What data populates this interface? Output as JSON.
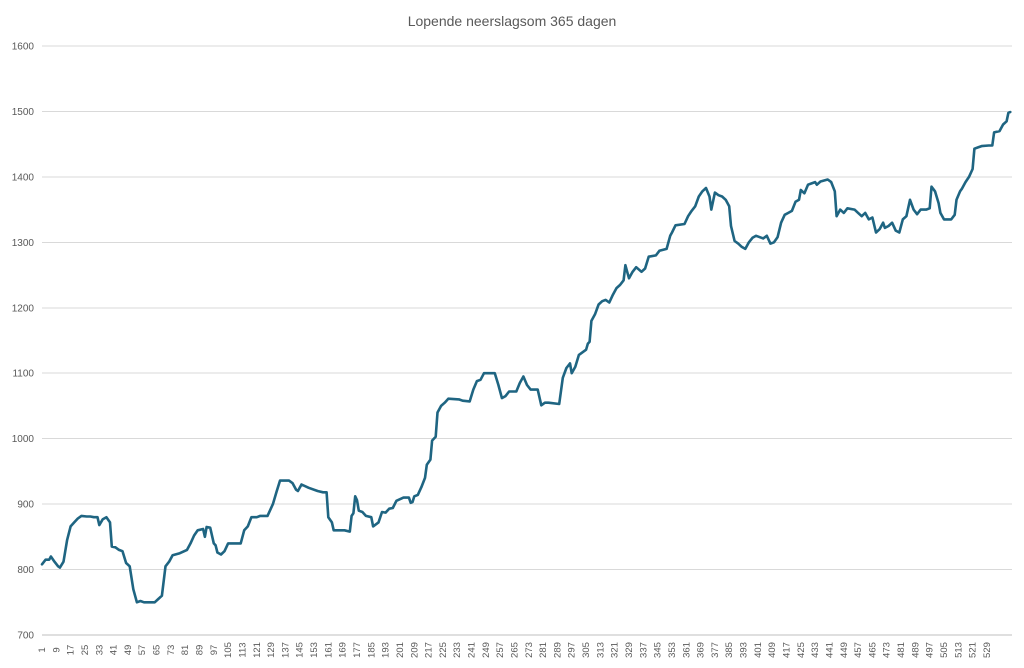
{
  "chart_data": {
    "type": "line",
    "title": "Lopende neerslagsom 365 dagen",
    "xlabel": "",
    "ylabel": "",
    "x_range": [
      1,
      536
    ],
    "x_tick_labels": [
      "1",
      "9",
      "17",
      "25",
      "33",
      "41",
      "49",
      "57",
      "65",
      "73",
      "81",
      "89",
      "97",
      "105",
      "113",
      "121",
      "129",
      "137",
      "145",
      "153",
      "161",
      "169",
      "177",
      "185",
      "193",
      "201",
      "209",
      "217",
      "225",
      "233",
      "241",
      "249",
      "257",
      "265",
      "273",
      "281",
      "289",
      "297",
      "305",
      "313",
      "321",
      "329",
      "337",
      "345",
      "353",
      "361",
      "369",
      "377",
      "385",
      "393",
      "401",
      "409",
      "417",
      "425",
      "433",
      "441",
      "449",
      "457",
      "465",
      "473",
      "481",
      "489",
      "497",
      "505",
      "513",
      "521",
      "529"
    ],
    "ylim": [
      700,
      1600
    ],
    "y_ticks": [
      700,
      800,
      900,
      1000,
      1100,
      1200,
      1300,
      1400,
      1500,
      1600
    ],
    "grid": true,
    "legend": "none",
    "series": [
      {
        "color": "#1f6582",
        "points": [
          [
            1,
            808
          ],
          [
            3,
            815
          ],
          [
            5,
            815
          ],
          [
            6,
            820
          ],
          [
            8,
            812
          ],
          [
            10,
            805
          ],
          [
            11,
            803
          ],
          [
            13,
            812
          ],
          [
            15,
            845
          ],
          [
            17,
            866
          ],
          [
            19,
            872
          ],
          [
            21,
            878
          ],
          [
            23,
            882
          ],
          [
            26,
            881
          ],
          [
            28,
            881
          ],
          [
            30,
            880
          ],
          [
            32,
            880
          ],
          [
            33,
            868
          ],
          [
            35,
            877
          ],
          [
            37,
            880
          ],
          [
            39,
            872
          ],
          [
            40,
            835
          ],
          [
            42,
            834
          ],
          [
            44,
            830
          ],
          [
            46,
            828
          ],
          [
            48,
            810
          ],
          [
            50,
            805
          ],
          [
            52,
            770
          ],
          [
            54,
            750
          ],
          [
            56,
            752
          ],
          [
            58,
            750
          ],
          [
            62,
            750
          ],
          [
            64,
            750
          ],
          [
            66,
            755
          ],
          [
            68,
            760
          ],
          [
            70,
            805
          ],
          [
            72,
            812
          ],
          [
            74,
            822
          ],
          [
            78,
            825
          ],
          [
            82,
            830
          ],
          [
            84,
            840
          ],
          [
            86,
            852
          ],
          [
            88,
            860
          ],
          [
            91,
            862
          ],
          [
            92,
            850
          ],
          [
            93,
            865
          ],
          [
            95,
            864
          ],
          [
            97,
            840
          ],
          [
            98,
            837
          ],
          [
            99,
            826
          ],
          [
            101,
            823
          ],
          [
            103,
            828
          ],
          [
            105,
            840
          ],
          [
            112,
            840
          ],
          [
            114,
            860
          ],
          [
            116,
            866
          ],
          [
            118,
            880
          ],
          [
            121,
            880
          ],
          [
            123,
            882
          ],
          [
            127,
            882
          ],
          [
            130,
            900
          ],
          [
            132,
            918
          ],
          [
            134,
            936
          ],
          [
            139,
            936
          ],
          [
            141,
            932
          ],
          [
            143,
            922
          ],
          [
            144,
            920
          ],
          [
            146,
            930
          ],
          [
            150,
            925
          ],
          [
            155,
            920
          ],
          [
            158,
            918
          ],
          [
            160,
            918
          ],
          [
            161,
            880
          ],
          [
            163,
            872
          ],
          [
            164,
            860
          ],
          [
            170,
            860
          ],
          [
            173,
            858
          ],
          [
            174,
            882
          ],
          [
            175,
            886
          ],
          [
            176,
            912
          ],
          [
            177,
            906
          ],
          [
            178,
            890
          ],
          [
            180,
            888
          ],
          [
            182,
            882
          ],
          [
            185,
            880
          ],
          [
            186,
            866
          ],
          [
            189,
            872
          ],
          [
            191,
            888
          ],
          [
            193,
            887
          ],
          [
            195,
            893
          ],
          [
            197,
            894
          ],
          [
            199,
            905
          ],
          [
            203,
            910
          ],
          [
            206,
            910
          ],
          [
            207,
            902
          ],
          [
            208,
            903
          ],
          [
            209,
            912
          ],
          [
            211,
            914
          ],
          [
            213,
            926
          ],
          [
            215,
            940
          ],
          [
            216,
            960
          ],
          [
            218,
            968
          ],
          [
            219,
            997
          ],
          [
            221,
            1003
          ],
          [
            222,
            1040
          ],
          [
            224,
            1050
          ],
          [
            226,
            1055
          ],
          [
            228,
            1061
          ],
          [
            234,
            1060
          ],
          [
            236,
            1058
          ],
          [
            240,
            1057
          ],
          [
            242,
            1075
          ],
          [
            244,
            1088
          ],
          [
            246,
            1090
          ],
          [
            248,
            1100
          ],
          [
            254,
            1100
          ],
          [
            256,
            1082
          ],
          [
            258,
            1062
          ],
          [
            260,
            1065
          ],
          [
            262,
            1072
          ],
          [
            266,
            1072
          ],
          [
            268,
            1085
          ],
          [
            270,
            1095
          ],
          [
            272,
            1082
          ],
          [
            274,
            1075
          ],
          [
            278,
            1075
          ],
          [
            280,
            1051
          ],
          [
            282,
            1055
          ],
          [
            284,
            1055
          ],
          [
            290,
            1053
          ],
          [
            292,
            1093
          ],
          [
            294,
            1108
          ],
          [
            296,
            1115
          ],
          [
            297,
            1100
          ],
          [
            299,
            1110
          ],
          [
            301,
            1128
          ],
          [
            303,
            1132
          ],
          [
            305,
            1136
          ],
          [
            306,
            1145
          ],
          [
            307,
            1148
          ],
          [
            308,
            1180
          ],
          [
            310,
            1190
          ],
          [
            312,
            1205
          ],
          [
            314,
            1210
          ],
          [
            316,
            1212
          ],
          [
            318,
            1208
          ],
          [
            320,
            1220
          ],
          [
            322,
            1230
          ],
          [
            324,
            1235
          ],
          [
            326,
            1242
          ],
          [
            327,
            1265
          ],
          [
            328,
            1255
          ],
          [
            329,
            1245
          ],
          [
            331,
            1255
          ],
          [
            333,
            1262
          ],
          [
            336,
            1255
          ],
          [
            338,
            1260
          ],
          [
            340,
            1278
          ],
          [
            344,
            1280
          ],
          [
            346,
            1287
          ],
          [
            350,
            1290
          ],
          [
            352,
            1310
          ],
          [
            353,
            1315
          ],
          [
            355,
            1326
          ],
          [
            360,
            1328
          ],
          [
            362,
            1340
          ],
          [
            364,
            1348
          ],
          [
            366,
            1355
          ],
          [
            368,
            1370
          ],
          [
            370,
            1378
          ],
          [
            372,
            1383
          ],
          [
            374,
            1370
          ],
          [
            375,
            1350
          ],
          [
            377,
            1376
          ],
          [
            379,
            1372
          ],
          [
            381,
            1370
          ],
          [
            383,
            1365
          ],
          [
            385,
            1355
          ],
          [
            386,
            1325
          ],
          [
            388,
            1302
          ],
          [
            390,
            1298
          ],
          [
            392,
            1293
          ],
          [
            394,
            1290
          ],
          [
            396,
            1300
          ],
          [
            398,
            1307
          ],
          [
            400,
            1310
          ],
          [
            404,
            1306
          ],
          [
            406,
            1310
          ],
          [
            408,
            1298
          ],
          [
            410,
            1300
          ],
          [
            412,
            1308
          ],
          [
            414,
            1330
          ],
          [
            416,
            1342
          ],
          [
            418,
            1345
          ],
          [
            420,
            1348
          ],
          [
            422,
            1362
          ],
          [
            424,
            1365
          ],
          [
            425,
            1380
          ],
          [
            427,
            1375
          ],
          [
            429,
            1388
          ],
          [
            431,
            1390
          ],
          [
            433,
            1392
          ],
          [
            434,
            1388
          ],
          [
            436,
            1393
          ],
          [
            440,
            1396
          ],
          [
            442,
            1392
          ],
          [
            444,
            1378
          ],
          [
            445,
            1340
          ],
          [
            447,
            1350
          ],
          [
            449,
            1345
          ],
          [
            451,
            1352
          ],
          [
            455,
            1350
          ],
          [
            457,
            1345
          ],
          [
            459,
            1340
          ],
          [
            461,
            1345
          ],
          [
            463,
            1335
          ],
          [
            465,
            1338
          ],
          [
            467,
            1315
          ],
          [
            469,
            1320
          ],
          [
            471,
            1330
          ],
          [
            472,
            1322
          ],
          [
            474,
            1325
          ],
          [
            476,
            1330
          ],
          [
            478,
            1318
          ],
          [
            480,
            1315
          ],
          [
            482,
            1335
          ],
          [
            484,
            1340
          ],
          [
            486,
            1365
          ],
          [
            488,
            1350
          ],
          [
            490,
            1343
          ],
          [
            492,
            1350
          ],
          [
            495,
            1350
          ],
          [
            497,
            1352
          ],
          [
            498,
            1385
          ],
          [
            500,
            1378
          ],
          [
            502,
            1360
          ],
          [
            503,
            1345
          ],
          [
            505,
            1335
          ],
          [
            509,
            1335
          ],
          [
            511,
            1342
          ],
          [
            512,
            1365
          ],
          [
            514,
            1378
          ],
          [
            515,
            1382
          ],
          [
            517,
            1392
          ],
          [
            519,
            1400
          ],
          [
            521,
            1412
          ],
          [
            522,
            1443
          ],
          [
            524,
            1445
          ],
          [
            526,
            1447
          ],
          [
            530,
            1448
          ],
          [
            532,
            1448
          ],
          [
            533,
            1468
          ],
          [
            536,
            1470
          ],
          [
            538,
            1480
          ],
          [
            540,
            1485
          ],
          [
            541,
            1498
          ],
          [
            542,
            1499
          ]
        ]
      }
    ]
  }
}
